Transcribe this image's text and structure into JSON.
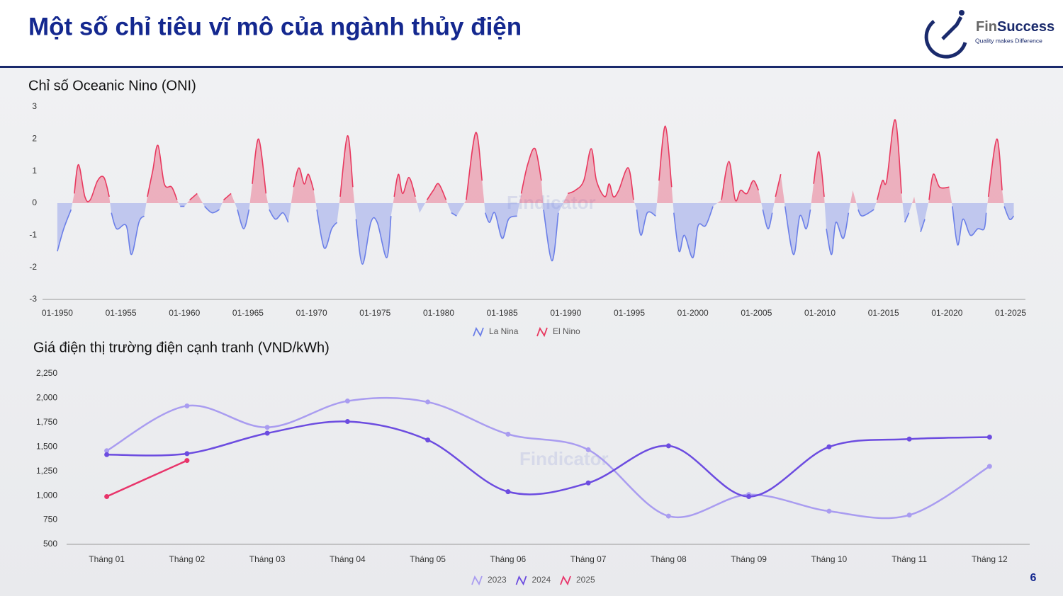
{
  "header": {
    "title": "Một số chỉ tiêu vĩ mô của ngành thủy điện"
  },
  "logo": {
    "brand": [
      "Fin",
      "Success"
    ],
    "tagline": "Quality makes Difference"
  },
  "watermark": "Findicator",
  "page_number": 6,
  "chart_data": [
    {
      "type": "area",
      "title": "Chỉ số Oceanic Nino (ONI)",
      "x": [
        "1950-01",
        "1950-07",
        "1951-02",
        "1951-05",
        "1951-09",
        "1952-03",
        "1952-08",
        "1953-03",
        "1953-09",
        "1954-02",
        "1954-04",
        "1954-09",
        "1955-06",
        "1955-11",
        "1956-06",
        "1956-11",
        "1957-02",
        "1957-07",
        "1957-12",
        "1958-06",
        "1959-01",
        "1959-06",
        "1959-09",
        "1960-01",
        "1960-06",
        "1961-01",
        "1961-08",
        "1962-03",
        "1962-10",
        "1963-02",
        "1963-09",
        "1964-03",
        "1964-09",
        "1965-02",
        "1965-05",
        "1965-11",
        "1966-06",
        "1966-09",
        "1967-03",
        "1967-10",
        "1968-03",
        "1968-08",
        "1969-01",
        "1969-06",
        "1969-10",
        "1970-03",
        "1970-06",
        "1971-01",
        "1971-08",
        "1972-01",
        "1972-04",
        "1972-11",
        "1973-04",
        "1973-07",
        "1974-01",
        "1974-09",
        "1975-03",
        "1975-12",
        "1976-04",
        "1976-07",
        "1976-11",
        "1977-03",
        "1977-09",
        "1978-03",
        "1978-07",
        "1979-02",
        "1979-08",
        "1980-01",
        "1980-08",
        "1981-01",
        "1981-06",
        "1982-03",
        "1982-12",
        "1983-06",
        "1983-09",
        "1984-01",
        "1984-06",
        "1985-01",
        "1985-07",
        "1986-03",
        "1986-07",
        "1987-01",
        "1987-08",
        "1988-02",
        "1988-04",
        "1988-12",
        "1989-06",
        "1990-03",
        "1990-10",
        "1991-06",
        "1992-01",
        "1992-06",
        "1993-02",
        "1993-06",
        "1993-10",
        "1994-03",
        "1994-12",
        "1995-05",
        "1995-08",
        "1995-12",
        "1996-06",
        "1997-02",
        "1997-05",
        "1997-11",
        "1998-05",
        "1998-07",
        "1998-12",
        "1999-05",
        "2000-01",
        "2000-06",
        "2001-01",
        "2001-08",
        "2002-04",
        "2002-11",
        "2003-05",
        "2003-10",
        "2004-04",
        "2004-10",
        "2005-03",
        "2005-07",
        "2005-12",
        "2006-04",
        "2006-07",
        "2006-12",
        "2007-04",
        "2007-12",
        "2008-06",
        "2008-12",
        "2009-04",
        "2009-07",
        "2009-12",
        "2010-05",
        "2010-07",
        "2010-12",
        "2011-04",
        "2011-11",
        "2012-04",
        "2012-08",
        "2013-01",
        "2013-05",
        "2014-04",
        "2014-07",
        "2014-12",
        "2015-04",
        "2015-12",
        "2016-06",
        "2016-09",
        "2017-01",
        "2017-06",
        "2017-12",
        "2018-04",
        "2018-08",
        "2018-12",
        "2019-06",
        "2020-03",
        "2020-06",
        "2020-11",
        "2021-04",
        "2021-11",
        "2022-06",
        "2022-12",
        "2023-02",
        "2023-04",
        "2023-12",
        "2024-05",
        "2024-07",
        "2024-12",
        "2025-04"
      ],
      "xlim": [
        "1948-11",
        "2026-03"
      ],
      "xticks": [
        {
          "value": "1950-01",
          "label": "01-1950"
        },
        {
          "value": "1955-01",
          "label": "01-1955"
        },
        {
          "value": "1960-01",
          "label": "01-1960"
        },
        {
          "value": "1965-01",
          "label": "01-1965"
        },
        {
          "value": "1970-01",
          "label": "01-1970"
        },
        {
          "value": "1975-01",
          "label": "01-1975"
        },
        {
          "value": "1980-01",
          "label": "01-1980"
        },
        {
          "value": "1985-01",
          "label": "01-1985"
        },
        {
          "value": "1990-01",
          "label": "01-1990"
        },
        {
          "value": "1995-01",
          "label": "01-1995"
        },
        {
          "value": "2000-01",
          "label": "01-2000"
        },
        {
          "value": "2005-01",
          "label": "01-2005"
        },
        {
          "value": "2010-01",
          "label": "01-2010"
        },
        {
          "value": "2015-01",
          "label": "01-2015"
        },
        {
          "value": "2020-01",
          "label": "01-2020"
        },
        {
          "value": "2025-01",
          "label": "01-2025"
        }
      ],
      "ylim": [
        -3,
        3
      ],
      "yticks": [
        -3,
        -2,
        -1,
        0,
        1,
        2,
        3
      ],
      "grid": false,
      "legend": "bottom",
      "series": [
        {
          "name": "La Nina",
          "color": "#6b7fe8",
          "values": [
            -1.5,
            -0.8,
            -0.2,
            null,
            null,
            null,
            null,
            null,
            null,
            null,
            -0.3,
            -0.8,
            -0.7,
            -1.6,
            -0.6,
            -0.4,
            null,
            null,
            null,
            null,
            null,
            null,
            -0.1,
            -0.1,
            null,
            null,
            -0.1,
            -0.3,
            -0.2,
            null,
            null,
            -0.2,
            -0.8,
            -0.2,
            null,
            null,
            null,
            -0.2,
            -0.5,
            -0.3,
            -0.6,
            null,
            null,
            null,
            null,
            null,
            -0.2,
            -1.4,
            -0.8,
            -0.6,
            null,
            null,
            null,
            -0.5,
            -1.9,
            -0.6,
            -0.6,
            -1.7,
            -0.4,
            null,
            null,
            null,
            null,
            null,
            -0.3,
            null,
            null,
            null,
            null,
            -0.3,
            -0.4,
            null,
            null,
            null,
            -0.3,
            -0.6,
            -0.3,
            -1.1,
            -0.5,
            -0.4,
            null,
            null,
            null,
            null,
            -0.2,
            -1.8,
            -0.3,
            null,
            null,
            null,
            null,
            null,
            null,
            null,
            null,
            null,
            null,
            null,
            -0.2,
            -1.0,
            -0.3,
            -0.4,
            null,
            null,
            null,
            -0.3,
            -1.5,
            -1.0,
            -1.7,
            -0.7,
            -0.7,
            -0.1,
            null,
            null,
            null,
            null,
            null,
            null,
            null,
            -0.2,
            -0.8,
            -0.3,
            null,
            null,
            -0.1,
            -1.6,
            -0.4,
            -0.8,
            -0.2,
            null,
            null,
            null,
            -0.8,
            -1.6,
            -0.6,
            -1.1,
            -0.3,
            null,
            -0.2,
            -0.4,
            -0.2,
            null,
            null,
            null,
            null,
            null,
            -0.6,
            -0.3,
            null,
            -0.9,
            -0.5,
            null,
            null,
            null,
            null,
            -0.1,
            -1.3,
            -0.5,
            -1.0,
            -0.8,
            -0.8,
            -0.3,
            null,
            null,
            null,
            -0.1,
            -0.5,
            -0.4
          ]
        },
        {
          "name": "El Nino",
          "color": "#e8395f",
          "values": [
            null,
            null,
            null,
            0.3,
            1.2,
            0.2,
            0.1,
            0.7,
            0.8,
            0.2,
            null,
            null,
            null,
            null,
            null,
            null,
            0.2,
            1.0,
            1.8,
            0.6,
            0.5,
            0.1,
            null,
            null,
            0.1,
            0.3,
            null,
            null,
            null,
            0.1,
            0.3,
            null,
            null,
            null,
            0.6,
            2.0,
            0.3,
            null,
            null,
            null,
            null,
            0.5,
            1.1,
            0.6,
            0.9,
            0.4,
            null,
            null,
            null,
            null,
            0.2,
            2.1,
            0.5,
            null,
            null,
            null,
            null,
            null,
            null,
            0.2,
            0.9,
            0.3,
            0.8,
            0.2,
            null,
            0.1,
            0.4,
            0.6,
            0.1,
            null,
            null,
            0.1,
            2.2,
            0.7,
            null,
            null,
            null,
            null,
            null,
            null,
            0.3,
            1.2,
            1.7,
            0.7,
            null,
            null,
            null,
            0.3,
            0.4,
            0.7,
            1.7,
            0.7,
            0.2,
            0.6,
            0.2,
            0.4,
            1.1,
            0.1,
            null,
            null,
            null,
            null,
            0.7,
            2.4,
            0.5,
            null,
            null,
            null,
            null,
            null,
            null,
            null,
            0.1,
            1.3,
            0.1,
            0.4,
            0.3,
            0.7,
            0.4,
            null,
            null,
            null,
            0.2,
            0.9,
            null,
            null,
            null,
            null,
            null,
            0.6,
            1.6,
            0.2,
            null,
            null,
            null,
            null,
            null,
            0.4,
            null,
            null,
            null,
            0.1,
            0.7,
            0.7,
            2.6,
            0.3,
            null,
            null,
            0.2,
            null,
            null,
            0.1,
            0.9,
            0.5,
            0.5,
            null,
            null,
            null,
            null,
            null,
            null,
            null,
            0.2,
            2.0,
            0.4,
            null,
            null,
            null
          ]
        }
      ]
    },
    {
      "type": "line",
      "title": "Giá điện thị trường điện cạnh tranh (VND/kWh)",
      "categories": [
        "Tháng 01",
        "Tháng 02",
        "Tháng 03",
        "Tháng 04",
        "Tháng 05",
        "Tháng 06",
        "Tháng 07",
        "Tháng 08",
        "Tháng 09",
        "Tháng 10",
        "Tháng 11",
        "Tháng 12"
      ],
      "ylim": [
        500,
        2250
      ],
      "yticks": [
        500,
        750,
        {
          "value": 1000,
          "label": "1,000"
        },
        {
          "value": 1250,
          "label": "1,250"
        },
        {
          "value": 1500,
          "label": "1,500"
        },
        {
          "value": 1750,
          "label": "1,750"
        },
        {
          "value": 2000,
          "label": "2,000"
        },
        {
          "value": 2250,
          "label": "2,250"
        }
      ],
      "grid": false,
      "legend": "bottom",
      "series": [
        {
          "name": "2023",
          "color": "#a99cf0",
          "values": [
            1460,
            1920,
            1700,
            1970,
            1960,
            1630,
            1470,
            790,
            1010,
            840,
            800,
            1300
          ]
        },
        {
          "name": "2024",
          "color": "#6c4ce0",
          "values": [
            1420,
            1430,
            1640,
            1760,
            1570,
            1040,
            1130,
            1510,
            990,
            1500,
            1580,
            1600
          ]
        },
        {
          "name": "2025",
          "color": "#e8346a",
          "values": [
            990,
            1360,
            null,
            null,
            null,
            null,
            null,
            null,
            null,
            null,
            null,
            null
          ]
        }
      ]
    }
  ]
}
